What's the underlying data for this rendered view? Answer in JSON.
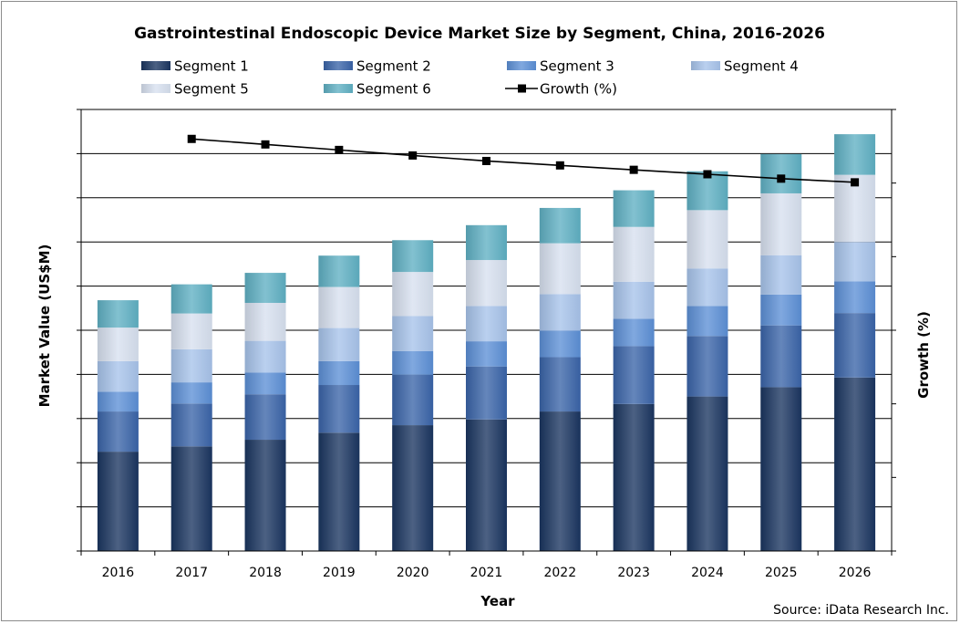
{
  "chart_data": {
    "type": "bar",
    "stacked": true,
    "title": "Gastrointestinal Endoscopic Device Market Size by Segment, China, 2016-2026",
    "xlabel": "Year",
    "ylabel": "Market Value (US$M)",
    "y2label": "Growth (%)",
    "source": "Source: iData Research Inc.",
    "categories": [
      "2016",
      "2017",
      "2018",
      "2019",
      "2020",
      "2021",
      "2022",
      "2023",
      "2024",
      "2025",
      "2026"
    ],
    "ylim": [
      0,
      10
    ],
    "y2lim": [
      0,
      12
    ],
    "grid": true,
    "legend_position": "top",
    "series": [
      {
        "name": "Segment 1",
        "color": "#1a3560",
        "values": [
          2.25,
          2.37,
          2.52,
          2.68,
          2.85,
          2.98,
          3.16,
          3.33,
          3.5,
          3.71,
          3.93
        ]
      },
      {
        "name": "Segment 2",
        "color": "#3a64a8",
        "values": [
          0.91,
          0.97,
          1.03,
          1.08,
          1.14,
          1.2,
          1.23,
          1.31,
          1.37,
          1.4,
          1.46
        ]
      },
      {
        "name": "Segment 3",
        "color": "#5c8fd6",
        "values": [
          0.45,
          0.48,
          0.49,
          0.54,
          0.54,
          0.57,
          0.6,
          0.62,
          0.68,
          0.7,
          0.72
        ]
      },
      {
        "name": "Segment 4",
        "color": "#a7c3ea",
        "values": [
          0.69,
          0.75,
          0.72,
          0.75,
          0.79,
          0.8,
          0.83,
          0.84,
          0.85,
          0.89,
          0.89
        ]
      },
      {
        "name": "Segment 5",
        "color": "#d7e0ef",
        "values": [
          0.76,
          0.81,
          0.86,
          0.93,
          1.0,
          1.04,
          1.15,
          1.24,
          1.32,
          1.4,
          1.52
        ]
      },
      {
        "name": "Segment 6",
        "color": "#5fb0c3",
        "values": [
          0.62,
          0.66,
          0.68,
          0.71,
          0.72,
          0.79,
          0.8,
          0.83,
          0.88,
          0.89,
          0.92
        ]
      }
    ],
    "line_series": {
      "name": "Growth (%)",
      "color": "#000000",
      "axis": "secondary",
      "x": [
        "2017",
        "2018",
        "2019",
        "2020",
        "2021",
        "2022",
        "2023",
        "2024",
        "2025",
        "2026"
      ],
      "values": [
        11.2,
        11.05,
        10.9,
        10.75,
        10.6,
        10.48,
        10.36,
        10.24,
        10.12,
        10.02
      ]
    }
  }
}
